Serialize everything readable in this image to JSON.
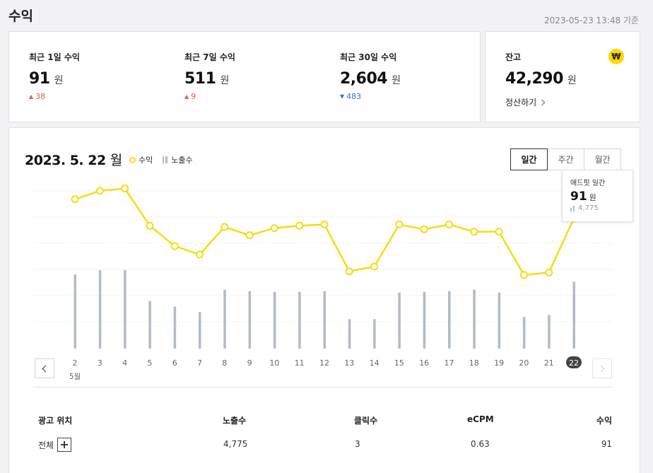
{
  "header": {
    "title": "수익",
    "timestamp": "2023-05-23 13:48 기준"
  },
  "summary": [
    {
      "label": "최근 1일 수익",
      "value": "91",
      "unit": "원",
      "delta": "38",
      "direction": "up"
    },
    {
      "label": "최근 7일 수익",
      "value": "511",
      "unit": "원",
      "delta": "9",
      "direction": "up"
    },
    {
      "label": "최근 30일 수익",
      "value": "2,604",
      "unit": "원",
      "delta": "483",
      "direction": "down"
    }
  ],
  "balance": {
    "label": "잔고",
    "value": "42,290",
    "unit": "원",
    "settle_label": "정산하기",
    "icon": "₩"
  },
  "chart_header": {
    "date": "2023. 5. 22",
    "weekday": "월",
    "legend_revenue": "수익",
    "legend_impressions": "노출수"
  },
  "period_tabs": [
    "일간",
    "주간",
    "월간"
  ],
  "tooltip": {
    "title": "애드핏 일간",
    "value": "91",
    "unit": "원",
    "impressions": "4,775"
  },
  "chart_data": {
    "type": "line",
    "categories": [
      "2",
      "3",
      "4",
      "5",
      "6",
      "7",
      "8",
      "9",
      "10",
      "11",
      "12",
      "13",
      "14",
      "15",
      "16",
      "17",
      "18",
      "19",
      "20",
      "21",
      "22"
    ],
    "month_label": "5월",
    "selected_index": 20,
    "series": [
      {
        "name": "수익",
        "type": "line",
        "color": "#f5dc14",
        "values": [
          107,
          114,
          116,
          85,
          68,
          61,
          84,
          77,
          83,
          85,
          86,
          47,
          51,
          86,
          82,
          86,
          80,
          80,
          44,
          46,
          91
        ]
      },
      {
        "name": "노출수",
        "type": "bar",
        "color": "#b3bbc4",
        "values": [
          5300,
          5600,
          5600,
          3400,
          3000,
          2600,
          4200,
          4100,
          4050,
          4050,
          4100,
          2100,
          2100,
          4000,
          4050,
          4100,
          4200,
          4000,
          2250,
          2400,
          4775
        ]
      }
    ],
    "gridlines": true
  },
  "table": {
    "headers": {
      "position": "광고 위치",
      "impressions": "노출수",
      "clicks": "클릭수",
      "ecpm": "eCPM",
      "revenue": "수익"
    },
    "rows": [
      {
        "position": "전체",
        "impressions": "4,775",
        "clicks": "3",
        "ecpm": "0.63",
        "revenue": "91"
      }
    ]
  }
}
